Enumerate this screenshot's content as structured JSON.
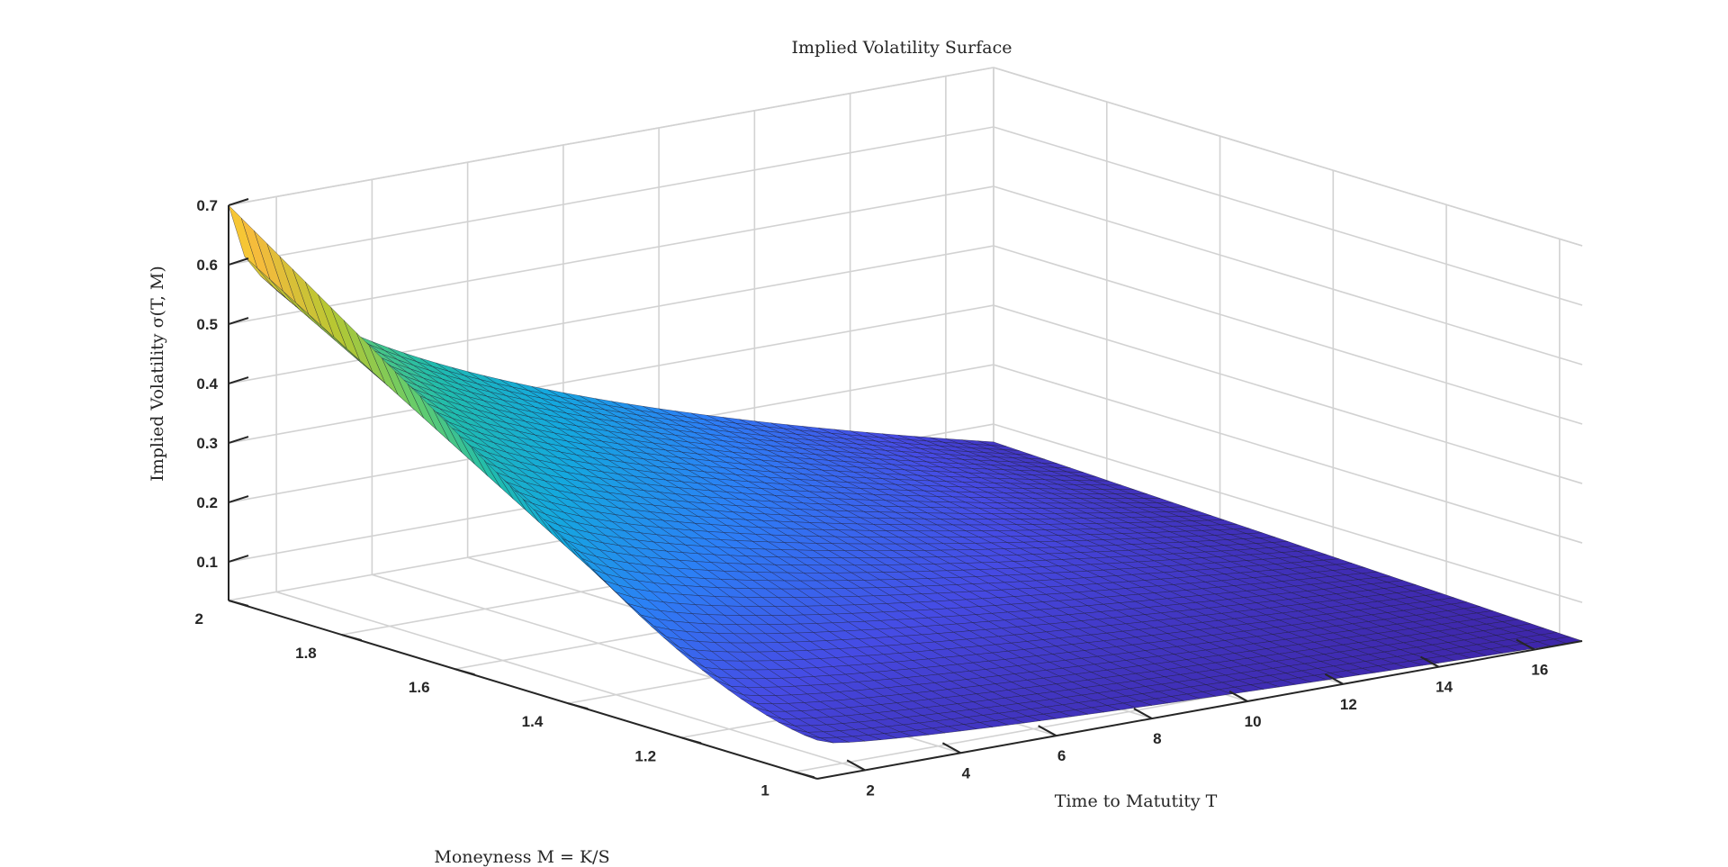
{
  "chart_data": {
    "type": "surface",
    "title": "Implied Volatility Surface",
    "xlabel": "Time to Matutity T",
    "ylabel": "Moneyness M = K/S",
    "zlabel": "Implied Volatility σ(T, M)",
    "x_ticks": [
      2,
      4,
      6,
      8,
      10,
      12,
      14,
      16
    ],
    "y_ticks": [
      1,
      1.2,
      1.4,
      1.6,
      1.8,
      2
    ],
    "z_ticks": [
      0.1,
      0.2,
      0.3,
      0.4,
      0.5,
      0.6,
      0.7
    ],
    "x_range": [
      1,
      17
    ],
    "y_range": [
      0.96,
      2
    ],
    "z_range": [
      0.035,
      0.7
    ],
    "grid": true,
    "colormap": "parula",
    "surface_corner_values": [
      {
        "T": 1,
        "M": 2,
        "iv": 0.7
      },
      {
        "T": 1,
        "M": 0.96,
        "iv": 0.1
      },
      {
        "T": 17,
        "M": 0.96,
        "iv": 0.035
      },
      {
        "T": 17,
        "M": 2,
        "iv": 0.07
      }
    ],
    "surface_knee": {
      "T": 1,
      "M": 1.38,
      "iv": 0.29
    }
  }
}
